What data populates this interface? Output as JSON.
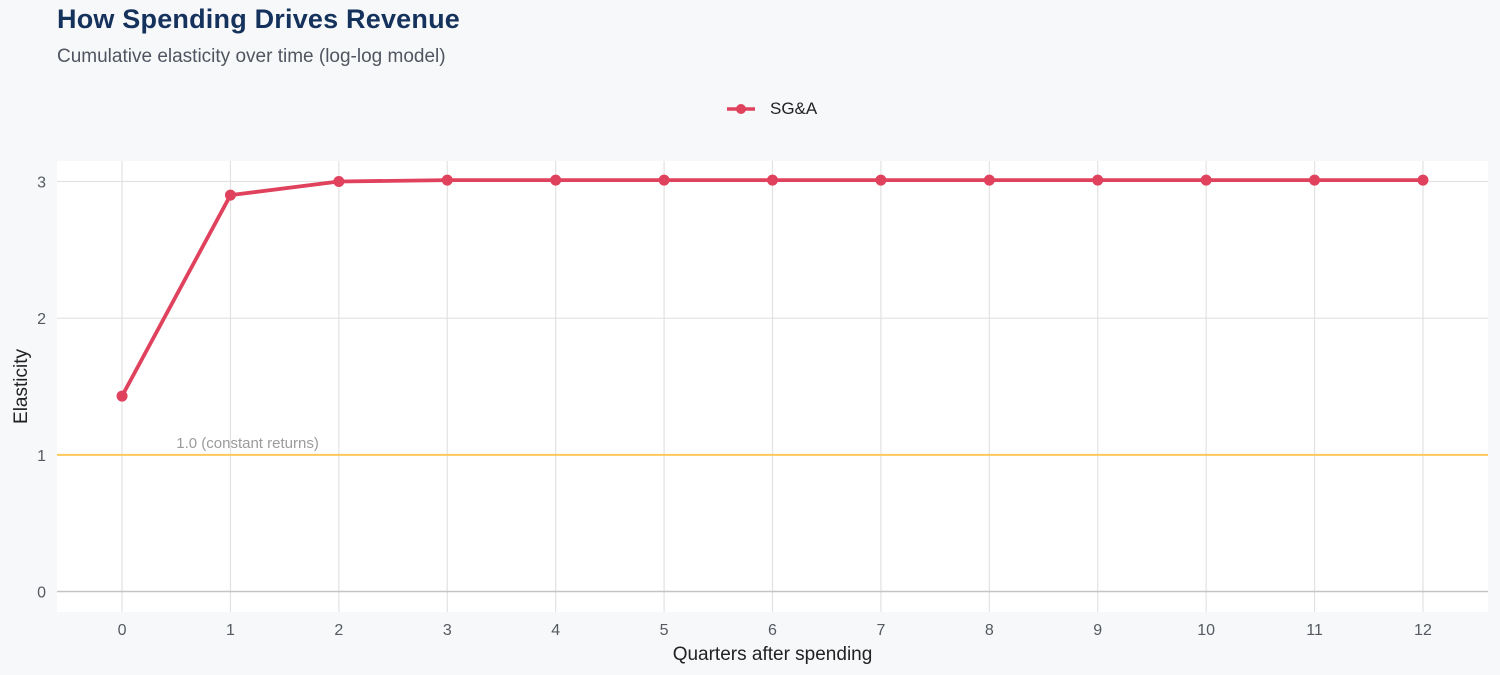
{
  "header": {
    "title": "How Spending Drives Revenue",
    "subtitle": "Cumulative elasticity over time (log-log model)"
  },
  "legend": {
    "label": "SG&A",
    "color": "#e0425e"
  },
  "colors": {
    "series": "#e0425e",
    "reference_line": "#ffc85a",
    "grid": "#e2e2e2",
    "panel": "#ffffff",
    "background": "#f7f8fa"
  },
  "chart_data": {
    "type": "line",
    "title": "How Spending Drives Revenue",
    "subtitle": "Cumulative elasticity over time (log-log model)",
    "xlabel": "Quarters after spending",
    "ylabel": "Elasticity",
    "x": [
      0,
      1,
      2,
      3,
      4,
      5,
      6,
      7,
      8,
      9,
      10,
      11,
      12
    ],
    "xlim": [
      -0.6,
      12.6
    ],
    "ylim": [
      -0.15,
      3.15
    ],
    "yticks": [
      0,
      1,
      2,
      3
    ],
    "grid": true,
    "legend_position": "top",
    "series": [
      {
        "name": "SG&A",
        "values": [
          1.43,
          2.9,
          3.0,
          3.01,
          3.01,
          3.01,
          3.01,
          3.01,
          3.01,
          3.01,
          3.01,
          3.01,
          3.01
        ]
      }
    ],
    "reference_lines": [
      {
        "y": 1.0,
        "label": "1.0 (constant returns)",
        "label_x": 0.5
      }
    ]
  }
}
